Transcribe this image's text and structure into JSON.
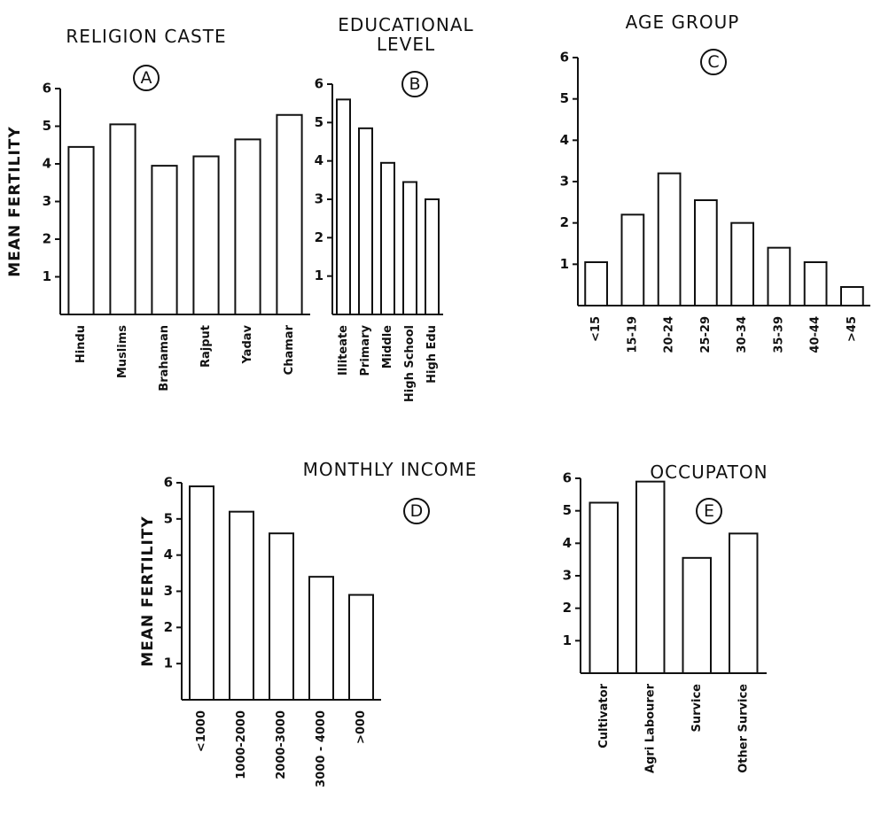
{
  "chart_data": [
    {
      "type": "bar",
      "title": "RELIGION CASTE",
      "label": "A",
      "ylabel": "MEAN FERTILITY",
      "categories": [
        "Hindu",
        "Muslims",
        "Brahaman",
        "Rajput",
        "Yadav",
        "Chamar"
      ],
      "values": [
        4.45,
        5.05,
        3.95,
        4.2,
        4.65,
        5.3
      ],
      "color": "#ffffff",
      "ylim": [
        0,
        6
      ],
      "yticks": [
        1,
        2,
        3,
        4,
        5,
        6
      ]
    },
    {
      "type": "bar",
      "title": [
        "EDUCATIONAL",
        "LEVEL"
      ],
      "label": "B",
      "categories": [
        "Illiteate",
        "Primary",
        "Middle",
        "High School",
        "High Edu"
      ],
      "values": [
        5.6,
        4.85,
        3.95,
        3.45,
        3.0
      ],
      "color": "#ffffff",
      "ylim": [
        0,
        6
      ],
      "yticks": [
        1,
        2,
        3,
        4,
        5,
        6
      ]
    },
    {
      "type": "bar",
      "title": "AGE GROUP",
      "label": "C",
      "categories": [
        "<15",
        "15-19",
        "20-24",
        "25-29",
        "30-34",
        "35-39",
        "40-44",
        ">45"
      ],
      "values": [
        1.05,
        2.2,
        3.2,
        2.55,
        2.0,
        1.4,
        1.05,
        0.45
      ],
      "color": "#ffffff",
      "ylim": [
        0,
        6
      ],
      "yticks": [
        1,
        2,
        3,
        4,
        5,
        6
      ]
    },
    {
      "type": "bar",
      "title": "MONTHLY INCOME",
      "label": "D",
      "ylabel": "MEAN FERTILITY",
      "categories": [
        "<1000",
        "1000-2000",
        "2000-3000",
        "3000 - 4000",
        ">000"
      ],
      "values": [
        5.9,
        5.2,
        4.6,
        3.4,
        2.9
      ],
      "color": "#ffffff",
      "ylim": [
        0,
        6
      ],
      "yticks": [
        1,
        2,
        3,
        4,
        5,
        6
      ]
    },
    {
      "type": "bar",
      "title": "OCCUPATON",
      "label": "E",
      "categories": [
        "Cultivator",
        "Agri Labourer",
        "Survice",
        "Other Survice"
      ],
      "values": [
        5.25,
        5.9,
        3.55,
        4.3
      ],
      "color": "#ffffff",
      "ylim": [
        0,
        6
      ],
      "yticks": [
        1,
        2,
        3,
        4,
        5,
        6
      ]
    }
  ]
}
